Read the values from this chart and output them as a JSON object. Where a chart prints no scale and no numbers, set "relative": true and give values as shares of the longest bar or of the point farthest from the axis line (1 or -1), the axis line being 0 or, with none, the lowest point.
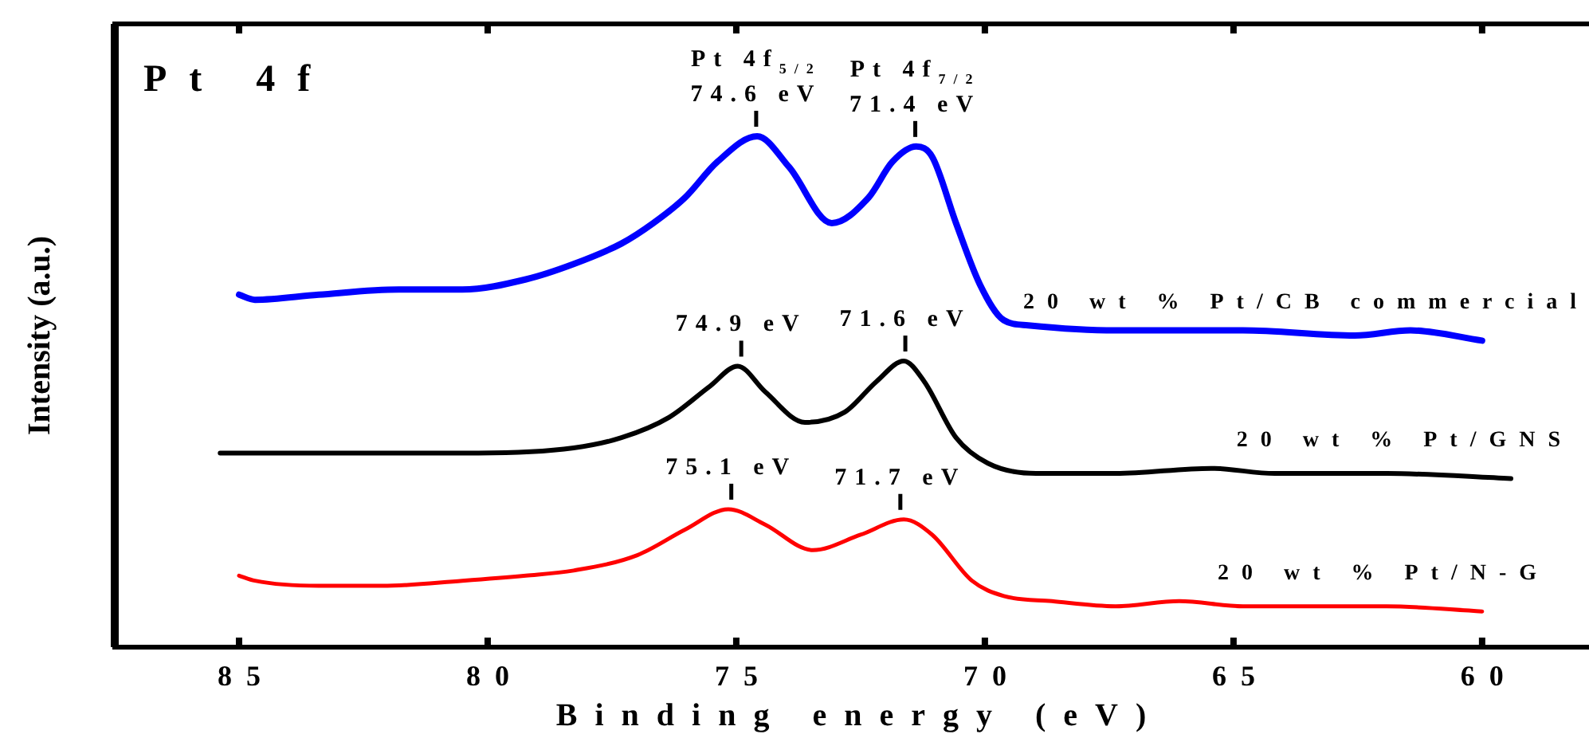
{
  "chart_data": {
    "type": "line",
    "xlabel": "Binding energy (eV)",
    "ylabel": "Intensity (a.u.)",
    "relative": true,
    "xlim": [
      87.5,
      57.85
    ],
    "xticks": [
      85,
      80,
      75,
      70,
      65,
      60
    ],
    "grid": false,
    "legend": false,
    "marker": "none",
    "line_style": "solid",
    "series": [
      {
        "name": "20 wt % Pt/CB commercial",
        "color": "#0000ff",
        "x": [
          85,
          84.68,
          83.4,
          81.79,
          80.51,
          79.23,
          78.27,
          77.31,
          76.67,
          76.03,
          75.38,
          74.58,
          73.94,
          73.08,
          72.34,
          71.86,
          71.38,
          71.06,
          70.58,
          70.1,
          69.62,
          69.13,
          67.37,
          64.81,
          62.56,
          61.44,
          60
        ],
        "values": [
          0.69,
          0.68,
          0.69,
          0.7,
          0.7,
          0.72,
          0.75,
          0.79,
          0.83,
          0.88,
          0.95,
          1.0,
          0.94,
          0.83,
          0.88,
          0.95,
          0.98,
          0.96,
          0.83,
          0.71,
          0.64,
          0.63,
          0.62,
          0.62,
          0.61,
          0.62,
          0.6
        ]
      },
      {
        "name": "20 wt % Pt/GNS",
        "color": "#000000",
        "x": [
          85.38,
          83.4,
          80.19,
          78.27,
          77.31,
          76.35,
          75.54,
          74.97,
          74.42,
          73.62,
          72.82,
          72.18,
          71.63,
          71.22,
          70.58,
          69.94,
          68.97,
          67.37,
          65.45,
          64.17,
          61.92,
          59.42
        ],
        "values": [
          0.38,
          0.38,
          0.38,
          0.39,
          0.41,
          0.45,
          0.51,
          0.55,
          0.5,
          0.44,
          0.46,
          0.52,
          0.56,
          0.52,
          0.41,
          0.36,
          0.34,
          0.34,
          0.35,
          0.34,
          0.34,
          0.33
        ]
      },
      {
        "name": "20 wt % Pt/N-G",
        "color": "#ff0000",
        "x": [
          85,
          84.68,
          83.4,
          82.12,
          80.51,
          79.23,
          78.27,
          76.99,
          76.03,
          75.16,
          74.42,
          73.46,
          72.5,
          71.63,
          71.06,
          70.26,
          69.62,
          68.65,
          67.37,
          66.09,
          64.81,
          63.21,
          61.92,
          60
        ],
        "values": [
          0.14,
          0.13,
          0.12,
          0.12,
          0.13,
          0.14,
          0.15,
          0.18,
          0.23,
          0.27,
          0.24,
          0.19,
          0.22,
          0.25,
          0.22,
          0.13,
          0.1,
          0.09,
          0.08,
          0.09,
          0.08,
          0.08,
          0.08,
          0.07
        ]
      }
    ],
    "annotations": [
      "Pt 4f",
      {
        "text": "Pt 4f$_{5/2}$\n74.6 eV",
        "x": 74.6,
        "y": 1.0
      },
      {
        "text": "Pt 4f$_{7/2}$\n71.4 eV",
        "x": 71.4,
        "y": 0.98
      },
      {
        "text": "74.9 eV",
        "x": 74.9,
        "y": 0.55
      },
      {
        "text": "71.6 eV",
        "x": 71.6,
        "y": 0.56
      },
      {
        "text": "75.1 eV",
        "x": 75.1,
        "y": 0.27
      },
      {
        "text": "71.7 eV",
        "x": 71.7,
        "y": 0.25
      }
    ]
  }
}
